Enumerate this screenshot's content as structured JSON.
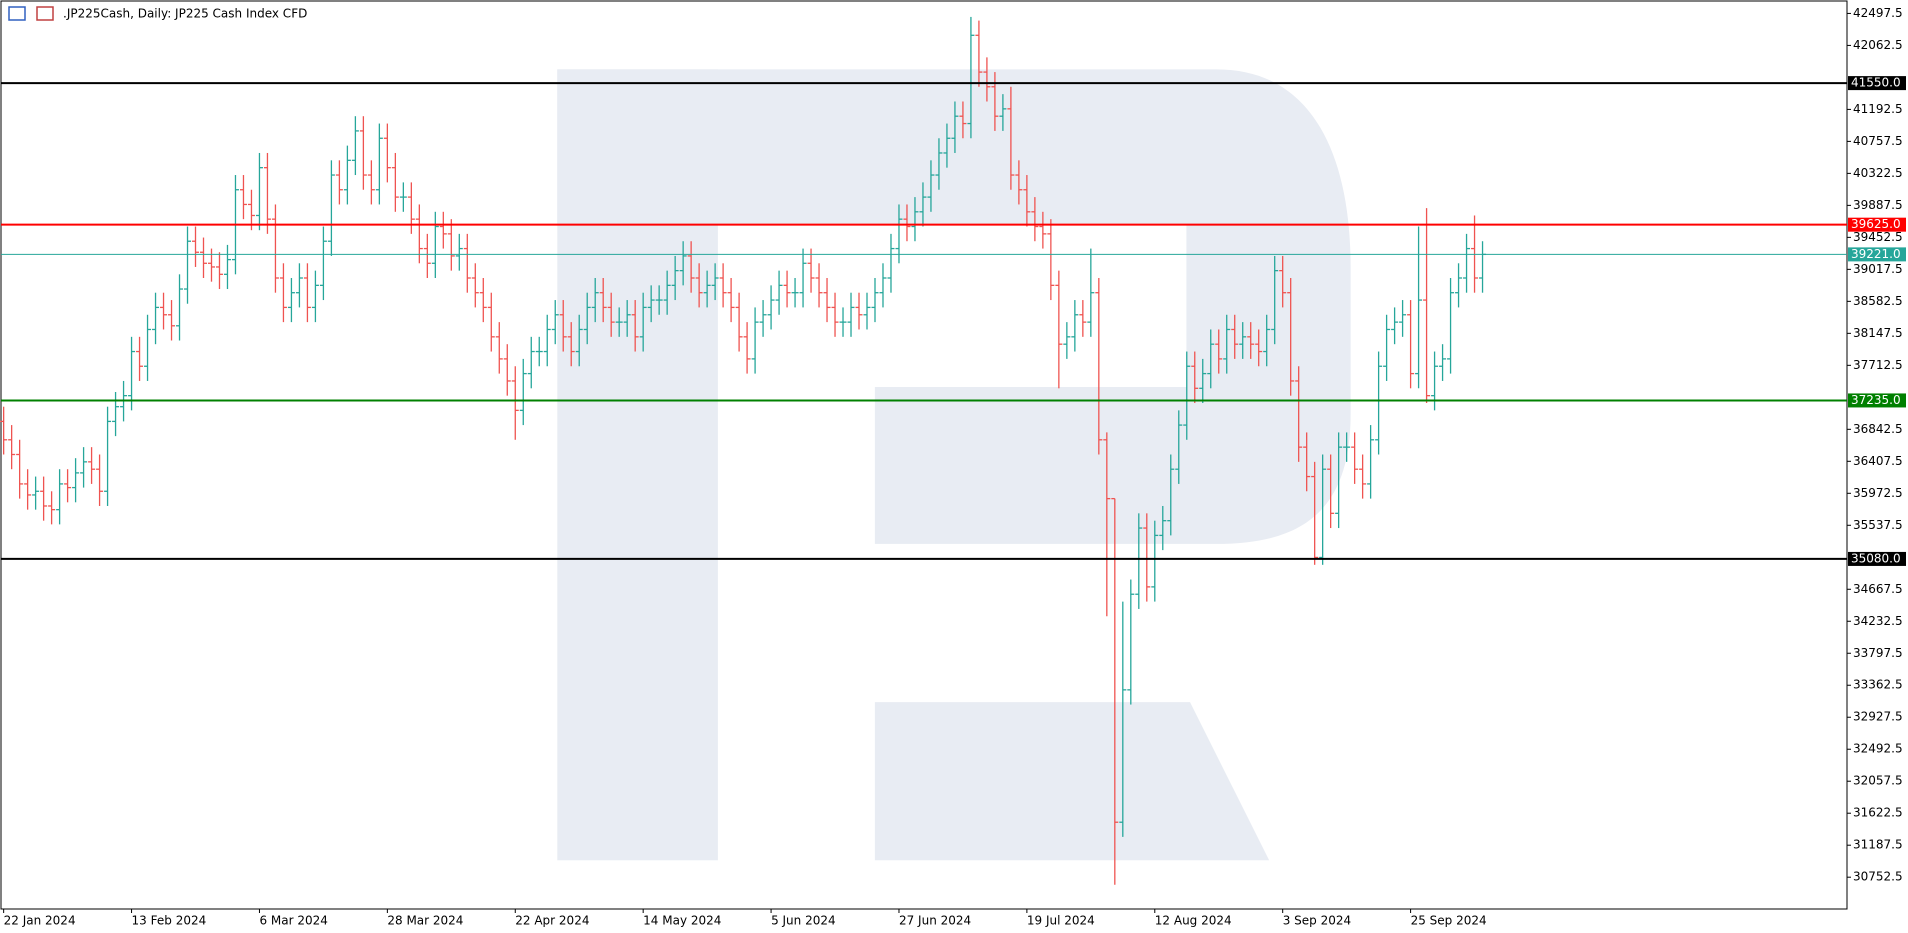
{
  "chart_data": {
    "type": "ohlc",
    "title": ".JP225Cash, Daily:  JP225 Cash Index CFD",
    "categories": [
      "22 Jan 2024",
      null,
      null,
      null,
      null,
      null,
      null,
      null,
      null,
      null,
      null,
      null,
      null,
      null,
      null,
      null,
      "13 Feb 2024",
      null,
      null,
      null,
      null,
      null,
      null,
      null,
      null,
      null,
      null,
      null,
      null,
      null,
      null,
      null,
      "6 Mar 2024",
      null,
      null,
      null,
      null,
      null,
      null,
      null,
      null,
      null,
      null,
      null,
      null,
      null,
      null,
      null,
      "28 Mar 2024",
      null,
      null,
      null,
      null,
      null,
      null,
      null,
      null,
      null,
      null,
      null,
      null,
      null,
      null,
      null,
      "22 Apr 2024",
      null,
      null,
      null,
      null,
      null,
      null,
      null,
      null,
      null,
      null,
      null,
      null,
      null,
      null,
      null,
      "14 May 2024",
      null,
      null,
      null,
      null,
      null,
      null,
      null,
      null,
      null,
      null,
      null,
      null,
      null,
      null,
      null,
      "5 Jun 2024",
      null,
      null,
      null,
      null,
      null,
      null,
      null,
      null,
      null,
      null,
      null,
      null,
      null,
      null,
      null,
      "27 Jun 2024",
      null,
      null,
      null,
      null,
      null,
      null,
      null,
      null,
      null,
      null,
      null,
      null,
      null,
      null,
      null,
      "19 Jul 2024",
      null,
      null,
      null,
      null,
      null,
      null,
      null,
      null,
      null,
      null,
      null,
      null,
      null,
      null,
      null,
      "12 Aug 2024",
      null,
      null,
      null,
      null,
      null,
      null,
      null,
      null,
      null,
      null,
      null,
      null,
      null,
      null,
      null,
      "3 Sep 2024",
      null,
      null,
      null,
      null,
      null,
      null,
      null,
      null,
      null,
      null,
      null,
      null,
      null,
      null,
      null,
      "25 Sep 2024",
      null,
      null,
      null,
      null,
      null,
      null,
      null,
      null,
      null
    ],
    "open": [
      36950,
      36700,
      36500,
      36100,
      35950,
      36000,
      35800,
      35750,
      36100,
      36050,
      36250,
      36400,
      36300,
      36000,
      36950,
      37150,
      37300,
      37900,
      37700,
      38200,
      38500,
      38400,
      38250,
      38750,
      39400,
      39250,
      39100,
      39050,
      38950,
      39150,
      40100,
      39900,
      39750,
      40400,
      39700,
      38900,
      38500,
      38700,
      38900,
      38500,
      38800,
      39400,
      40300,
      40100,
      40500,
      40900,
      40300,
      40100,
      40800,
      40400,
      40000,
      40000,
      39700,
      39300,
      39100,
      39600,
      39500,
      39200,
      39300,
      38900,
      38700,
      38500,
      38100,
      37800,
      37500,
      37100,
      37600,
      37900,
      37900,
      38200,
      38400,
      38100,
      37900,
      38200,
      38500,
      38700,
      38500,
      38300,
      38300,
      38400,
      38100,
      38500,
      38600,
      38600,
      38800,
      39000,
      39200,
      38900,
      38700,
      38800,
      38900,
      38700,
      38500,
      38100,
      37800,
      38300,
      38400,
      38600,
      38800,
      38700,
      38700,
      39100,
      38900,
      38700,
      38500,
      38300,
      38300,
      38500,
      38400,
      38500,
      38700,
      38900,
      39300,
      39700,
      39600,
      39800,
      40000,
      40300,
      40600,
      40800,
      41100,
      41000,
      42200,
      41700,
      41500,
      41100,
      41200,
      40300,
      40100,
      39800,
      39600,
      39500,
      38800,
      38000,
      38100,
      38400,
      38300,
      38700,
      36700,
      35900,
      31500,
      33300,
      34600,
      35500,
      34700,
      35400,
      35600,
      36300,
      36900,
      37700,
      37400,
      37600,
      38000,
      37800,
      38200,
      38000,
      38100,
      38000,
      37900,
      38200,
      39000,
      38700,
      37500,
      36600,
      36200,
      35100,
      36300,
      35700,
      36600,
      36600,
      36300,
      36100,
      36700,
      37700,
      38200,
      38300,
      38400,
      37600,
      38600,
      37300,
      37700,
      37800,
      38700,
      38900,
      39300,
      38900
    ],
    "high": [
      37150,
      36900,
      36700,
      36300,
      36200,
      36200,
      36000,
      36300,
      36300,
      36450,
      36600,
      36600,
      36500,
      37150,
      37350,
      37500,
      38100,
      38100,
      38400,
      38700,
      38700,
      38600,
      38950,
      39600,
      39600,
      39450,
      39300,
      39250,
      39350,
      40300,
      40300,
      40100,
      40600,
      40600,
      39900,
      39100,
      38900,
      39100,
      39100,
      39000,
      39600,
      40500,
      40500,
      40700,
      41100,
      41100,
      40500,
      41000,
      41000,
      40600,
      40200,
      40200,
      39900,
      39500,
      39800,
      39800,
      39700,
      39500,
      39500,
      39100,
      38900,
      38700,
      38300,
      38000,
      37700,
      37800,
      38100,
      38100,
      38400,
      38600,
      38600,
      38300,
      38400,
      38700,
      38900,
      38900,
      38700,
      38500,
      38600,
      38600,
      38700,
      38800,
      38800,
      39000,
      39200,
      39400,
      39400,
      39100,
      39000,
      39100,
      39100,
      38900,
      38700,
      38300,
      38500,
      38600,
      38800,
      39000,
      39000,
      38900,
      39300,
      39300,
      39100,
      38900,
      38700,
      38500,
      38700,
      38700,
      38700,
      38900,
      39100,
      39500,
      39900,
      39900,
      40000,
      40200,
      40500,
      40800,
      41000,
      41300,
      41300,
      42450,
      42400,
      41900,
      41700,
      41400,
      41500,
      40500,
      40300,
      40000,
      39800,
      39700,
      39000,
      38300,
      38600,
      38600,
      39300,
      38900,
      36800,
      35900,
      34500,
      34800,
      35700,
      35700,
      35600,
      35800,
      36500,
      37100,
      37900,
      37900,
      37800,
      38200,
      38200,
      38400,
      38400,
      38300,
      38300,
      38200,
      38400,
      39200,
      39200,
      38900,
      37700,
      36800,
      36400,
      36500,
      36500,
      36800,
      36800,
      36800,
      36500,
      36900,
      37900,
      38400,
      38500,
      38600,
      38600,
      39600,
      39850,
      37900,
      38000,
      38900,
      39100,
      39500,
      39750,
      39400
    ],
    "low": [
      36500,
      36300,
      35900,
      35750,
      35750,
      35600,
      35550,
      35550,
      35850,
      35850,
      36050,
      36100,
      35800,
      35800,
      36750,
      36950,
      37100,
      37500,
      37500,
      38000,
      38200,
      38050,
      38050,
      38550,
      39050,
      38900,
      38850,
      38750,
      38750,
      38950,
      39700,
      39550,
      39550,
      39500,
      38700,
      38300,
      38300,
      38500,
      38300,
      38300,
      38600,
      39200,
      39900,
      39900,
      40300,
      40100,
      39900,
      39900,
      40200,
      39800,
      39800,
      39500,
      39100,
      38900,
      38900,
      39300,
      39000,
      39000,
      38700,
      38500,
      38300,
      37900,
      37600,
      37300,
      36700,
      36900,
      37400,
      37700,
      37700,
      38000,
      37900,
      37700,
      37700,
      38000,
      38300,
      38300,
      38100,
      38100,
      38100,
      37900,
      37900,
      38300,
      38400,
      38400,
      38600,
      38800,
      38700,
      38500,
      38500,
      38600,
      38500,
      38300,
      37900,
      37600,
      37600,
      38100,
      38200,
      38400,
      38500,
      38500,
      38500,
      38700,
      38500,
      38300,
      38100,
      38100,
      38100,
      38200,
      38200,
      38300,
      38500,
      38700,
      39100,
      39400,
      39400,
      39600,
      39800,
      40100,
      40400,
      40600,
      40800,
      40800,
      41500,
      41300,
      40900,
      40900,
      40100,
      39900,
      39600,
      39400,
      39300,
      38600,
      37400,
      37800,
      37900,
      38100,
      38100,
      36500,
      34300,
      30650,
      31300,
      33100,
      34400,
      34500,
      34500,
      35200,
      35400,
      36100,
      36700,
      37200,
      37200,
      37400,
      37600,
      37600,
      37800,
      37800,
      37800,
      37700,
      37700,
      38000,
      38500,
      37300,
      36400,
      36000,
      35000,
      35000,
      35500,
      35500,
      36400,
      36100,
      35900,
      35900,
      36500,
      37500,
      38000,
      38100,
      37400,
      37400,
      37200,
      37100,
      37500,
      37600,
      38500,
      38700,
      38700,
      38700
    ],
    "close": [
      36700,
      36500,
      36100,
      35950,
      36000,
      35800,
      35750,
      36100,
      36050,
      36250,
      36400,
      36300,
      36000,
      36950,
      37150,
      37300,
      37900,
      37700,
      38200,
      38500,
      38400,
      38250,
      38750,
      39400,
      39250,
      39100,
      39050,
      38950,
      39150,
      40100,
      39900,
      39750,
      40400,
      39700,
      38900,
      38500,
      38700,
      38900,
      38500,
      38800,
      39400,
      40300,
      40100,
      40500,
      40900,
      40300,
      40100,
      40800,
      40400,
      40000,
      40000,
      39700,
      39300,
      39100,
      39600,
      39500,
      39200,
      39300,
      38900,
      38700,
      38500,
      38100,
      37800,
      37500,
      37100,
      37600,
      37900,
      37900,
      38200,
      38400,
      38100,
      37900,
      38200,
      38500,
      38700,
      38500,
      38300,
      38300,
      38400,
      38100,
      38500,
      38600,
      38600,
      38800,
      39000,
      39200,
      38900,
      38700,
      38800,
      38900,
      38700,
      38500,
      38100,
      37800,
      38300,
      38400,
      38600,
      38800,
      38700,
      38700,
      39100,
      38900,
      38700,
      38500,
      38300,
      38300,
      38500,
      38400,
      38500,
      38700,
      38900,
      39300,
      39700,
      39600,
      39800,
      40000,
      40300,
      40600,
      40800,
      41100,
      41000,
      42200,
      41700,
      41500,
      41100,
      41200,
      40300,
      40100,
      39800,
      39600,
      39500,
      38800,
      38000,
      38100,
      38400,
      38300,
      38700,
      36700,
      35900,
      31500,
      33300,
      34600,
      35500,
      34700,
      35400,
      35600,
      36300,
      36900,
      37700,
      37400,
      37600,
      38000,
      37800,
      38200,
      38000,
      38100,
      38000,
      37900,
      38200,
      39000,
      38700,
      37500,
      36600,
      36200,
      35100,
      36300,
      35700,
      36600,
      36600,
      36300,
      36100,
      36700,
      37700,
      38200,
      38300,
      38400,
      37600,
      38600,
      37300,
      37700,
      37800,
      38700,
      38900,
      39300,
      38900,
      39221
    ],
    "up_color": "#26a69a",
    "down_color": "#ef5350",
    "ylim": [
      30320,
      42680
    ],
    "yticks": [
      42497.5,
      42062.5,
      41192.5,
      40757.5,
      40322.5,
      39887.5,
      39452.5,
      39017.5,
      38582.5,
      38147.5,
      37712.5,
      36842.5,
      36407.5,
      35972.5,
      35537.5,
      34667.5,
      34232.5,
      33797.5,
      33362.5,
      32927.5,
      32492.5,
      32057.5,
      31622.5,
      31187.5,
      30752.5
    ],
    "levels": [
      {
        "value": 41550,
        "label": "41550.0",
        "color": "#000000"
      },
      {
        "value": 39625,
        "label": "39625.0",
        "color": "#ff0000"
      },
      {
        "value": 39221,
        "label": "39221.0",
        "color": "#26a69a"
      },
      {
        "value": 37235,
        "label": "37235.0",
        "color": "#008000"
      },
      {
        "value": 35080,
        "label": "35080.0",
        "color": "#000000"
      }
    ]
  }
}
